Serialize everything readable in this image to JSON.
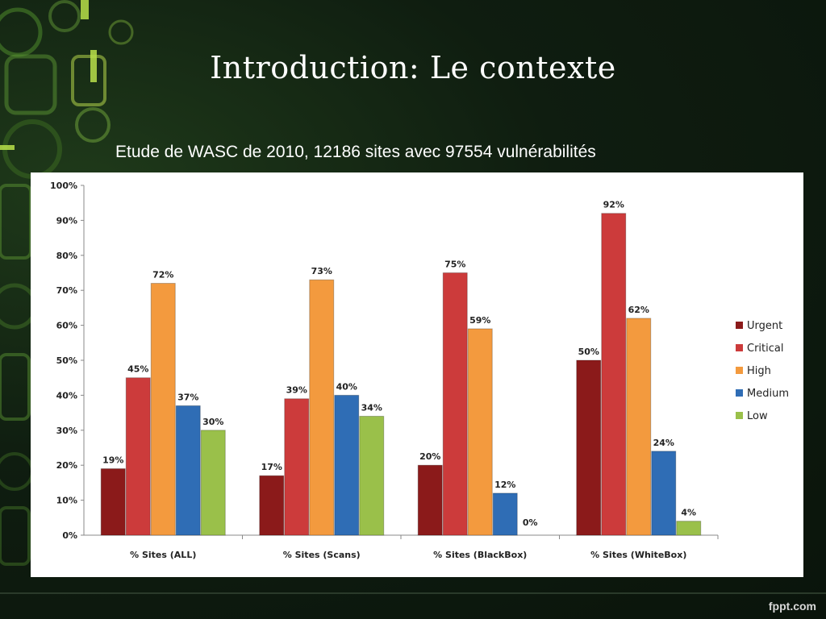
{
  "slide": {
    "title": "Introduction: Le contexte",
    "subtitle": "Etude de WASC de 2010, 12186 sites avec 97554 vulnérabilités",
    "watermark": "fppt.com"
  },
  "chart_data": {
    "type": "bar",
    "title": "",
    "xlabel": "",
    "ylabel": "",
    "ylim": [
      0,
      100
    ],
    "y_ticks": [
      "0%",
      "10%",
      "20%",
      "30%",
      "40%",
      "50%",
      "60%",
      "70%",
      "80%",
      "90%",
      "100%"
    ],
    "categories": [
      "% Sites (ALL)",
      "% Sites (Scans)",
      "% Sites (BlackBox)",
      "% Sites (WhiteBox)"
    ],
    "legend_position": "right",
    "grid": false,
    "series": [
      {
        "name": "Urgent",
        "color": "#8b1a1a",
        "values": [
          19,
          17,
          20,
          50
        ],
        "labels": [
          "19%",
          "17%",
          "20%",
          "50%"
        ]
      },
      {
        "name": "Critical",
        "color": "#cc3b3b",
        "values": [
          45,
          39,
          75,
          92
        ],
        "labels": [
          "45%",
          "39%",
          "75%",
          "92%"
        ]
      },
      {
        "name": "High",
        "color": "#f39a3e",
        "values": [
          72,
          73,
          59,
          62
        ],
        "labels": [
          "72%",
          "73%",
          "59%",
          "62%"
        ]
      },
      {
        "name": "Medium",
        "color": "#2f6db5",
        "values": [
          37,
          40,
          12,
          24
        ],
        "labels": [
          "37%",
          "40%",
          "12%",
          "24%"
        ]
      },
      {
        "name": "Low",
        "color": "#9ac04a",
        "values": [
          30,
          34,
          0,
          4
        ],
        "labels": [
          "30%",
          "34%",
          "0%",
          "4%"
        ]
      }
    ]
  }
}
